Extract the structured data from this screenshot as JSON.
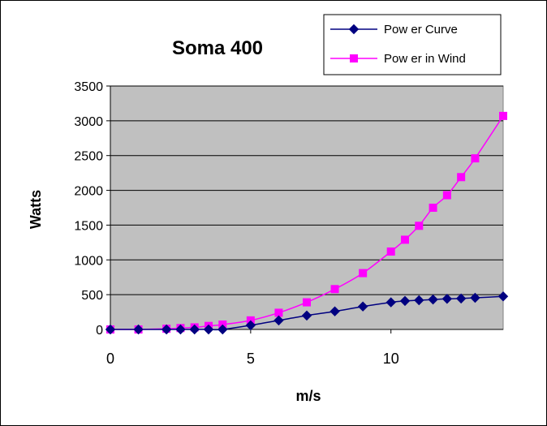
{
  "chart_data": {
    "type": "line",
    "title": "Soma 400",
    "xlabel": "m/s",
    "ylabel": "Watts",
    "xlim": [
      0,
      14
    ],
    "ylim": [
      0,
      3500
    ],
    "x_ticks": [
      0,
      5,
      10
    ],
    "y_ticks": [
      0,
      500,
      1000,
      1500,
      2000,
      2500,
      3000,
      3500
    ],
    "grid": "horizontal",
    "plot_background": "#c0c0c0",
    "legend_position": "top-right",
    "series": [
      {
        "name": "Power Curve",
        "legend_label": "Pow er Curve",
        "color": "#000080",
        "marker": "diamond",
        "x": [
          0,
          1,
          2,
          2.5,
          3,
          3.5,
          4,
          5,
          6,
          7,
          8,
          9,
          10,
          10.5,
          11,
          11.5,
          12,
          12.5,
          13,
          14
        ],
        "y": [
          0,
          0,
          0,
          0,
          0,
          0,
          0,
          60,
          130,
          200,
          260,
          330,
          390,
          410,
          420,
          430,
          440,
          445,
          455,
          475
        ]
      },
      {
        "name": "Power in Wind",
        "legend_label": "Pow er in Wind",
        "color": "#ff00ff",
        "marker": "square",
        "x": [
          0,
          1,
          2,
          2.5,
          3,
          3.5,
          4,
          5,
          6,
          7,
          8,
          9,
          10,
          10.5,
          11,
          11.5,
          12,
          12.5,
          13,
          14
        ],
        "y": [
          0,
          0,
          10,
          20,
          30,
          50,
          70,
          130,
          240,
          390,
          580,
          810,
          1120,
          1290,
          1490,
          1750,
          1930,
          2190,
          2460,
          3070
        ]
      }
    ]
  }
}
